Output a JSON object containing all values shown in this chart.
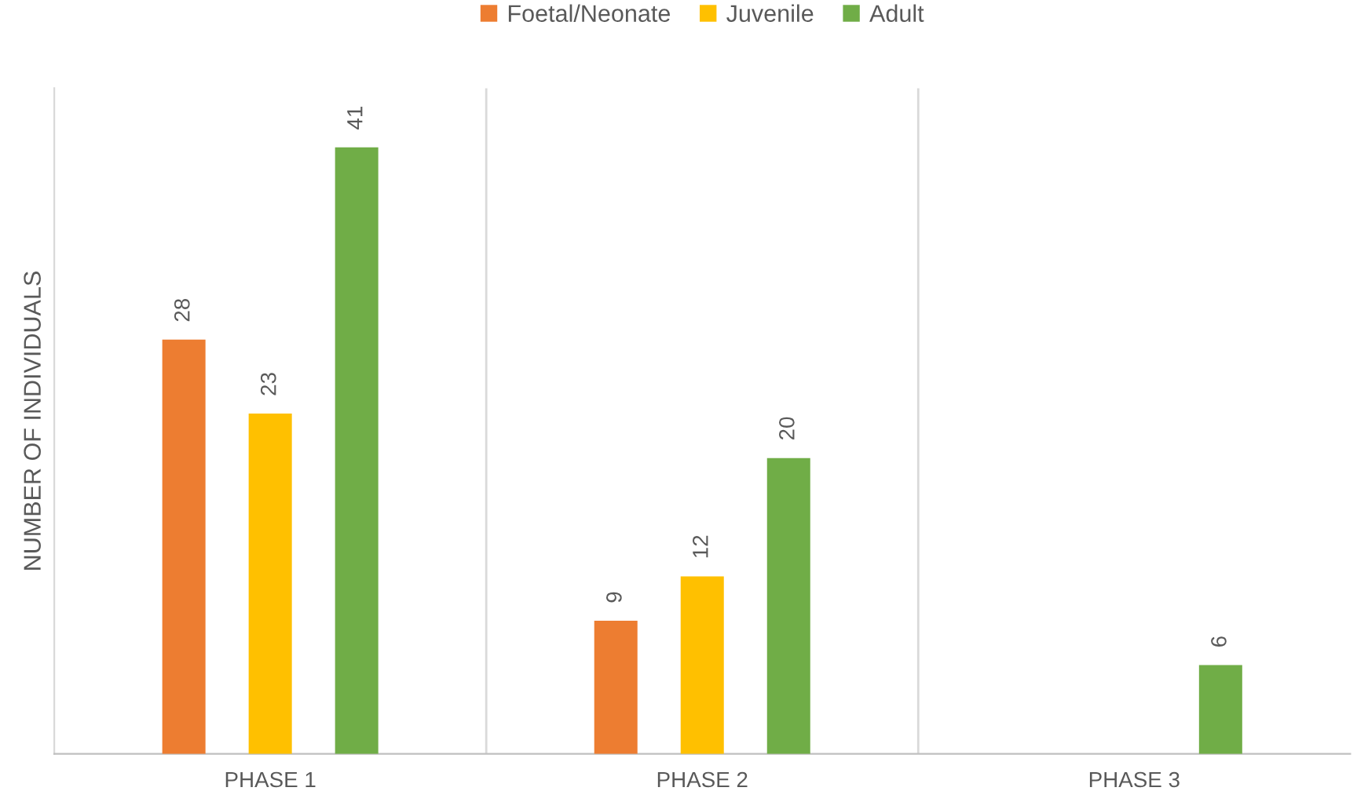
{
  "chart_data": {
    "type": "bar",
    "ylabel": "NUMBER OF INDIVIDUALS",
    "categories": [
      "PHASE 1",
      "PHASE 2",
      "PHASE 3"
    ],
    "series": [
      {
        "name": "Foetal/Neonate",
        "color": "#ed7d31",
        "values": [
          28,
          9,
          null
        ]
      },
      {
        "name": "Juvenile",
        "color": "#ffc000",
        "values": [
          23,
          12,
          null
        ]
      },
      {
        "name": "Adult",
        "color": "#70ad47",
        "values": [
          41,
          20,
          6
        ]
      }
    ],
    "ylim": [
      0,
      45
    ],
    "tick_labels": "x",
    "grid": "x",
    "legend": "top",
    "data_labels": true
  }
}
